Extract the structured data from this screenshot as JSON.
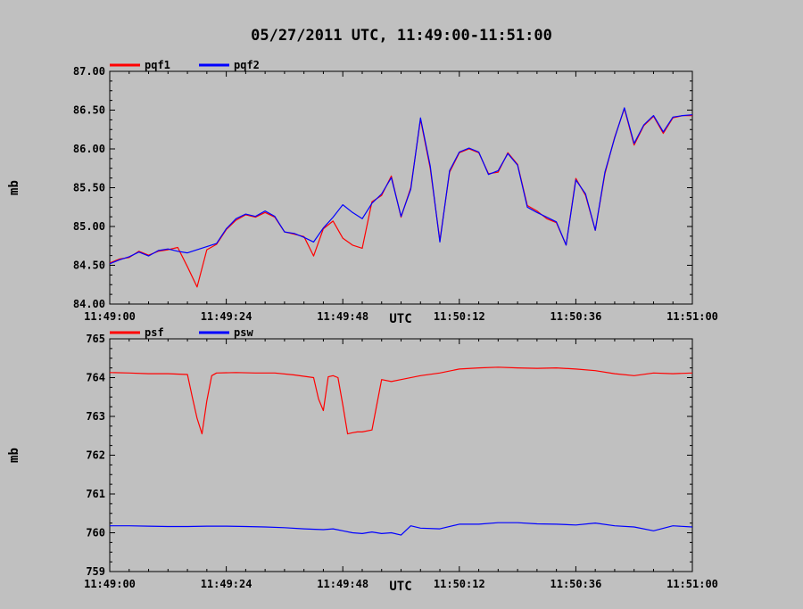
{
  "title": "05/27/2011  UTC, 11:49:00-11:51:00",
  "chart_data": [
    {
      "type": "line",
      "ylabel": "mb",
      "xlabel": "UTC",
      "ylim": [
        84.0,
        87.0
      ],
      "xlim": [
        0,
        120
      ],
      "y_ticks": [
        "84.00",
        "84.50",
        "85.00",
        "85.50",
        "86.00",
        "86.50",
        "87.00"
      ],
      "x_ticks": [
        "11:49:00",
        "11:49:24",
        "11:49:48",
        "11:50:12",
        "11:50:36",
        "11:51:00"
      ],
      "legend": "top-left",
      "series": [
        {
          "name": "pqf1",
          "color": "#ff0000",
          "x": [
            0,
            2,
            4,
            6,
            8,
            10,
            12,
            14,
            16,
            18,
            20,
            22,
            24,
            26,
            28,
            30,
            32,
            34,
            36,
            38,
            40,
            42,
            44,
            46,
            48,
            50,
            52,
            54,
            56,
            58,
            60,
            62,
            64,
            66,
            68,
            70,
            72,
            74,
            76,
            78,
            80,
            82,
            84,
            86,
            88,
            90,
            92,
            94,
            96,
            98,
            100,
            102,
            104,
            106,
            108,
            110,
            112,
            114,
            116,
            118,
            120
          ],
          "y": [
            84.53,
            84.58,
            84.6,
            84.68,
            84.63,
            84.68,
            84.7,
            84.73,
            84.48,
            84.22,
            84.7,
            84.77,
            84.96,
            85.08,
            85.15,
            85.12,
            85.18,
            85.12,
            84.93,
            84.9,
            84.87,
            84.62,
            84.97,
            85.07,
            84.85,
            84.76,
            84.72,
            85.32,
            85.4,
            85.65,
            85.12,
            85.5,
            86.38,
            85.75,
            84.82,
            85.7,
            85.95,
            86.0,
            85.95,
            85.68,
            85.7,
            85.95,
            85.8,
            85.27,
            85.2,
            85.1,
            85.05,
            84.76,
            85.62,
            85.4,
            84.95,
            85.68,
            86.15,
            86.52,
            86.05,
            86.3,
            86.42,
            86.2,
            86.4,
            86.43,
            86.43
          ]
        },
        {
          "name": "pqf2",
          "color": "#0000ff",
          "x": [
            0,
            2,
            4,
            6,
            8,
            10,
            12,
            14,
            16,
            18,
            20,
            22,
            24,
            26,
            28,
            30,
            32,
            34,
            36,
            38,
            40,
            42,
            44,
            46,
            48,
            50,
            52,
            54,
            56,
            58,
            60,
            62,
            64,
            66,
            68,
            70,
            72,
            74,
            76,
            78,
            80,
            82,
            84,
            86,
            88,
            90,
            92,
            94,
            96,
            98,
            100,
            102,
            104,
            106,
            108,
            110,
            112,
            114,
            116,
            118,
            120
          ],
          "y": [
            84.52,
            84.57,
            84.61,
            84.67,
            84.62,
            84.69,
            84.71,
            84.68,
            84.66,
            84.7,
            84.74,
            84.78,
            84.97,
            85.1,
            85.16,
            85.13,
            85.2,
            85.13,
            84.93,
            84.91,
            84.86,
            84.8,
            84.98,
            85.12,
            85.28,
            85.18,
            85.1,
            85.3,
            85.42,
            85.63,
            85.13,
            85.48,
            86.4,
            85.78,
            84.8,
            85.72,
            85.96,
            86.01,
            85.96,
            85.67,
            85.72,
            85.94,
            85.79,
            85.25,
            85.18,
            85.12,
            85.06,
            84.76,
            85.6,
            85.42,
            84.95,
            85.7,
            86.14,
            86.53,
            86.07,
            86.31,
            86.43,
            86.22,
            86.41,
            86.43,
            86.44
          ]
        }
      ]
    },
    {
      "type": "line",
      "ylabel": "mb",
      "xlabel": "UTC",
      "ylim": [
        759,
        765
      ],
      "xlim": [
        0,
        120
      ],
      "y_ticks": [
        "759",
        "760",
        "761",
        "762",
        "763",
        "764",
        "765"
      ],
      "x_ticks": [
        "11:49:00",
        "11:49:24",
        "11:49:48",
        "11:50:12",
        "11:50:36",
        "11:51:00"
      ],
      "legend": "top-left",
      "series": [
        {
          "name": "psf",
          "color": "#ff0000",
          "x": [
            0,
            4,
            8,
            12,
            16,
            17,
            18,
            19,
            20,
            21,
            22,
            26,
            30,
            34,
            38,
            42,
            43,
            44,
            45,
            46,
            47,
            48,
            49,
            50,
            51,
            52,
            54,
            56,
            58,
            60,
            64,
            68,
            72,
            76,
            80,
            84,
            88,
            92,
            96,
            100,
            104,
            108,
            112,
            116,
            120
          ],
          "y": [
            764.13,
            764.12,
            764.1,
            764.1,
            764.08,
            763.5,
            762.95,
            762.55,
            763.4,
            764.05,
            764.12,
            764.13,
            764.12,
            764.12,
            764.07,
            764.0,
            763.45,
            763.15,
            764.02,
            764.05,
            764.0,
            763.3,
            762.55,
            762.58,
            762.6,
            762.6,
            762.65,
            763.95,
            763.9,
            763.95,
            764.05,
            764.12,
            764.22,
            764.25,
            764.27,
            764.25,
            764.24,
            764.25,
            764.22,
            764.18,
            764.1,
            764.05,
            764.12,
            764.1,
            764.12
          ]
        },
        {
          "name": "psw",
          "color": "#0000ff",
          "x": [
            0,
            4,
            8,
            12,
            16,
            20,
            24,
            28,
            32,
            36,
            40,
            44,
            46,
            48,
            50,
            52,
            54,
            56,
            58,
            60,
            62,
            64,
            68,
            72,
            76,
            80,
            84,
            88,
            92,
            96,
            100,
            104,
            108,
            112,
            116,
            120
          ],
          "y": [
            760.18,
            760.18,
            760.17,
            760.16,
            760.16,
            760.17,
            760.17,
            760.16,
            760.15,
            760.13,
            760.1,
            760.08,
            760.1,
            760.05,
            760.0,
            759.98,
            760.02,
            759.98,
            760.0,
            759.94,
            760.18,
            760.12,
            760.1,
            760.22,
            760.22,
            760.26,
            760.26,
            760.23,
            760.22,
            760.2,
            760.25,
            760.18,
            760.15,
            760.05,
            760.18,
            760.15
          ]
        }
      ]
    }
  ]
}
